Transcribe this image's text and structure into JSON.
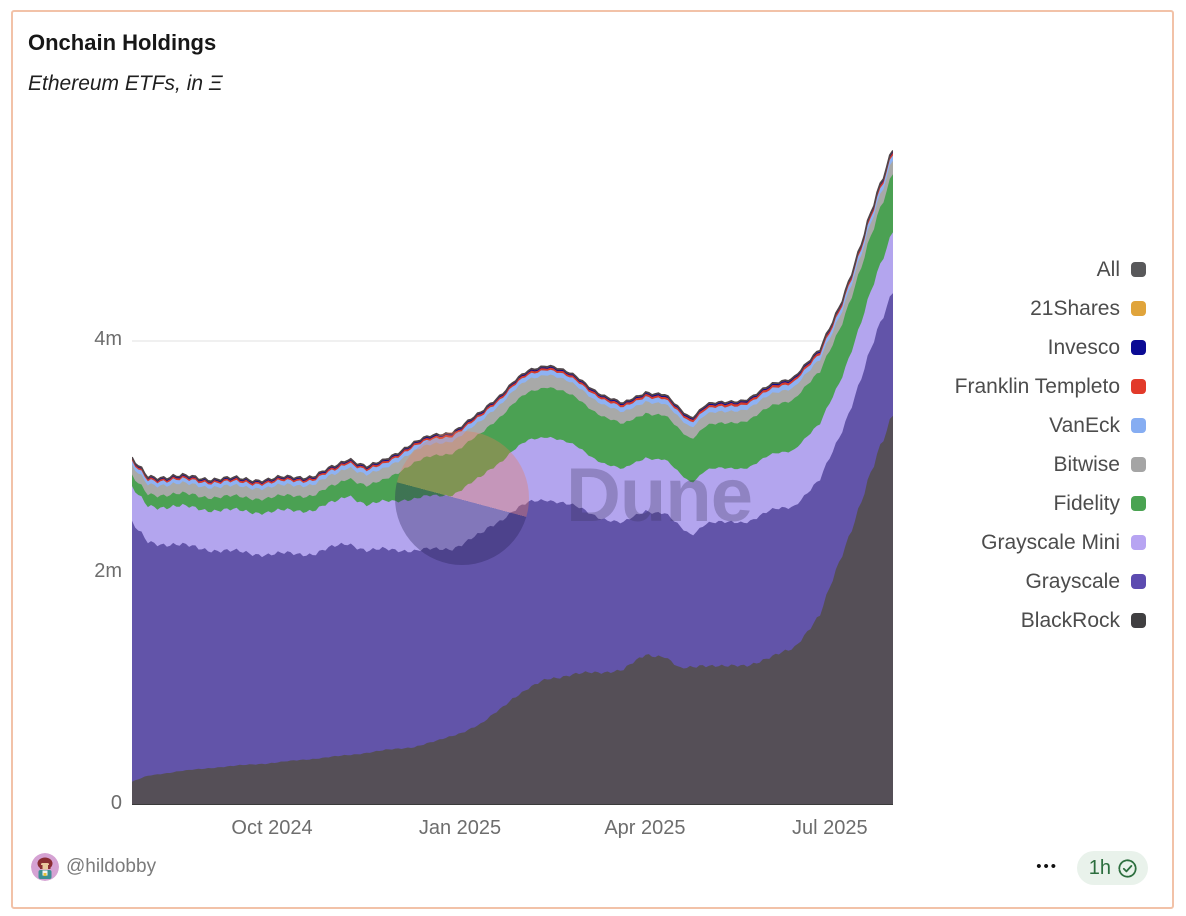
{
  "card": {
    "title": "Onchain Holdings",
    "subtitle": "Ethereum ETFs, in Ξ",
    "border_color": "#f2c2a8"
  },
  "watermark": {
    "text": "Dune"
  },
  "footer": {
    "author": "@hildobby",
    "menu_label": "•••",
    "badge": {
      "text": "1h",
      "icon": "verified-seal-check-icon",
      "bg": "#e9f2eb",
      "color": "#2c6e3e"
    }
  },
  "chart_data": {
    "type": "area",
    "stacked": true,
    "title": "Onchain Holdings",
    "subtitle": "Ethereum ETFs, in Ξ",
    "units": "ETH (millions)",
    "x_range": [
      "Jul 2024",
      "Aug 2025"
    ],
    "ylim": [
      0,
      5.8
    ],
    "grid": "horizontal",
    "noise": 0.009,
    "all_line_color": "#4f4449",
    "yticks": [
      {
        "v": 0,
        "label": "0"
      },
      {
        "v": 2,
        "label": "2m"
      },
      {
        "v": 4,
        "label": "4m"
      }
    ],
    "xticks": [
      {
        "t": 0.184,
        "label": "Oct 2024"
      },
      {
        "t": 0.431,
        "label": "Jan 2025"
      },
      {
        "t": 0.674,
        "label": "Apr 2025"
      },
      {
        "t": 0.917,
        "label": "Jul 2025"
      }
    ],
    "legend": [
      {
        "label": "All",
        "color": "#58585a"
      },
      {
        "label": "21Shares",
        "color": "#e0a43b"
      },
      {
        "label": "Invesco",
        "color": "#0b0b94"
      },
      {
        "label": "Franklin Templeto",
        "color": "#e23a2a"
      },
      {
        "label": "VanEck",
        "color": "#86adf2"
      },
      {
        "label": "Bitwise",
        "color": "#a5a5a5"
      },
      {
        "label": "Fidelity",
        "color": "#4aa352"
      },
      {
        "label": "Grayscale Mini",
        "color": "#b7a4f2"
      },
      {
        "label": "Grayscale",
        "color": "#5c4bb0"
      },
      {
        "label": "BlackRock",
        "color": "#403f41"
      }
    ],
    "series": [
      {
        "name": "BlackRock",
        "color": "#554f57",
        "keypoints": [
          [
            0,
            0.2
          ],
          [
            0.02,
            0.25
          ],
          [
            0.06,
            0.29
          ],
          [
            0.12,
            0.33
          ],
          [
            0.18,
            0.36
          ],
          [
            0.24,
            0.4
          ],
          [
            0.285,
            0.43
          ],
          [
            0.33,
            0.47
          ],
          [
            0.37,
            0.5
          ],
          [
            0.4,
            0.55
          ],
          [
            0.435,
            0.63
          ],
          [
            0.46,
            0.7
          ],
          [
            0.5,
            0.92
          ],
          [
            0.545,
            1.09
          ],
          [
            0.6,
            1.14
          ],
          [
            0.645,
            1.16
          ],
          [
            0.675,
            1.3
          ],
          [
            0.7,
            1.28
          ],
          [
            0.72,
            1.17
          ],
          [
            0.75,
            1.21
          ],
          [
            0.78,
            1.19
          ],
          [
            0.81,
            1.21
          ],
          [
            0.84,
            1.27
          ],
          [
            0.87,
            1.36
          ],
          [
            0.904,
            1.63
          ],
          [
            0.93,
            2.11
          ],
          [
            0.957,
            2.59
          ],
          [
            0.976,
            2.94
          ],
          [
            1.0,
            3.39
          ]
        ]
      },
      {
        "name": "Grayscale",
        "color": "#6254a9",
        "keypoints": [
          [
            0,
            2.22
          ],
          [
            0.02,
            2.02
          ],
          [
            0.06,
            1.95
          ],
          [
            0.12,
            1.86
          ],
          [
            0.18,
            1.8
          ],
          [
            0.24,
            1.77
          ],
          [
            0.285,
            1.83
          ],
          [
            0.31,
            1.74
          ],
          [
            0.36,
            1.71
          ],
          [
            0.42,
            1.62
          ],
          [
            0.47,
            1.64
          ],
          [
            0.52,
            1.6
          ],
          [
            0.56,
            1.52
          ],
          [
            0.6,
            1.38
          ],
          [
            0.645,
            1.26
          ],
          [
            0.69,
            1.24
          ],
          [
            0.72,
            1.22
          ],
          [
            0.735,
            1.14
          ],
          [
            0.755,
            1.23
          ],
          [
            0.8,
            1.24
          ],
          [
            0.84,
            1.26
          ],
          [
            0.875,
            1.22
          ],
          [
            0.904,
            1.16
          ],
          [
            0.93,
            1.08
          ],
          [
            0.957,
            1.06
          ],
          [
            1.0,
            1.07
          ]
        ]
      },
      {
        "name": "Grayscale Mini",
        "color": "#b3a5ee",
        "keypoints": [
          [
            0,
            0.3
          ],
          [
            0.06,
            0.33
          ],
          [
            0.12,
            0.35
          ],
          [
            0.2,
            0.37
          ],
          [
            0.27,
            0.385
          ],
          [
            0.285,
            0.42
          ],
          [
            0.31,
            0.39
          ],
          [
            0.36,
            0.44
          ],
          [
            0.4,
            0.46
          ],
          [
            0.45,
            0.48
          ],
          [
            0.5,
            0.52
          ],
          [
            0.55,
            0.55
          ],
          [
            0.6,
            0.5
          ],
          [
            0.645,
            0.46
          ],
          [
            0.7,
            0.46
          ],
          [
            0.735,
            0.455
          ],
          [
            0.755,
            0.46
          ],
          [
            0.82,
            0.47
          ],
          [
            0.875,
            0.49
          ],
          [
            0.93,
            0.47
          ],
          [
            0.957,
            0.48
          ],
          [
            0.976,
            0.5
          ],
          [
            1.0,
            0.52
          ]
        ]
      },
      {
        "name": "Fidelity",
        "color": "#4ba153",
        "keypoints": [
          [
            0,
            0.1
          ],
          [
            0.08,
            0.11
          ],
          [
            0.16,
            0.12
          ],
          [
            0.24,
            0.13
          ],
          [
            0.285,
            0.15
          ],
          [
            0.33,
            0.18
          ],
          [
            0.37,
            0.31
          ],
          [
            0.4,
            0.35
          ],
          [
            0.45,
            0.37
          ],
          [
            0.5,
            0.4
          ],
          [
            0.545,
            0.43
          ],
          [
            0.58,
            0.42
          ],
          [
            0.62,
            0.4
          ],
          [
            0.66,
            0.385
          ],
          [
            0.7,
            0.38
          ],
          [
            0.735,
            0.375
          ],
          [
            0.77,
            0.385
          ],
          [
            0.82,
            0.41
          ],
          [
            0.86,
            0.43
          ],
          [
            0.9,
            0.45
          ],
          [
            0.94,
            0.46
          ],
          [
            0.97,
            0.48
          ],
          [
            1.0,
            0.5
          ]
        ]
      },
      {
        "name": "Bitwise",
        "color": "#a8a9a8",
        "keypoints": [
          [
            0,
            0.085
          ],
          [
            0.15,
            0.09
          ],
          [
            0.3,
            0.095
          ],
          [
            0.42,
            0.105
          ],
          [
            0.52,
            0.11
          ],
          [
            0.65,
            0.1
          ],
          [
            0.78,
            0.1
          ],
          [
            0.9,
            0.105
          ],
          [
            1.0,
            0.115
          ]
        ]
      },
      {
        "name": "VanEck",
        "color": "#8eb2f3",
        "keypoints": [
          [
            0,
            0.035
          ],
          [
            0.25,
            0.037
          ],
          [
            0.45,
            0.042
          ],
          [
            0.65,
            0.042
          ],
          [
            0.85,
            0.044
          ],
          [
            1.0,
            0.048
          ]
        ]
      },
      {
        "name": "Franklin Templeto",
        "color": "#d53b2c",
        "keypoints": [
          [
            0,
            0.015
          ],
          [
            0.4,
            0.017
          ],
          [
            0.7,
            0.019
          ],
          [
            1.0,
            0.022
          ]
        ]
      },
      {
        "name": "Invesco",
        "color": "#0a0a94",
        "keypoints": [
          [
            0,
            0.008
          ],
          [
            0.5,
            0.009
          ],
          [
            1.0,
            0.011
          ]
        ]
      },
      {
        "name": "21Shares",
        "color": "#e0a43b",
        "keypoints": [
          [
            0,
            0.006
          ],
          [
            0.5,
            0.007
          ],
          [
            1.0,
            0.008
          ]
        ]
      }
    ]
  }
}
